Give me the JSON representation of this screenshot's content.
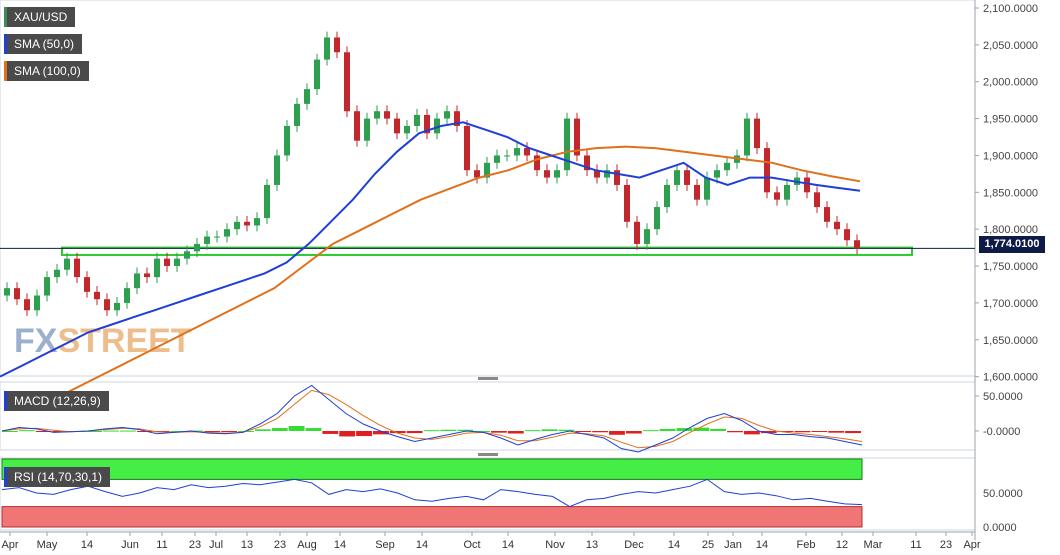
{
  "legends": {
    "symbol": {
      "label": "XAU/USD",
      "color": "#3a8a5a"
    },
    "sma50": {
      "label": "SMA (50,0)",
      "color": "#1f3fd6"
    },
    "sma100": {
      "label": "SMA (100,0)",
      "color": "#e0701a"
    },
    "macd": {
      "label": "MACD (12,26,9)",
      "color": "#1f3fd6"
    },
    "rsi": {
      "label": "RSI (14,70,30,1)",
      "color": "#1f3fd6"
    }
  },
  "watermark": {
    "part1": "FX",
    "part2": "STREET"
  },
  "last_price_label": "1,774.0100",
  "colors": {
    "up_candle": "#2e9e4f",
    "down_candle": "#c0282d",
    "sma50": "#1f3fd6",
    "sma100": "#e0701a",
    "support_zone": "#2ecc2e",
    "rsi_overbought": "#44ee44",
    "rsi_oversold": "#f07575",
    "macd_pos": "#33dd33",
    "macd_neg": "#e02020"
  },
  "chart_data": [
    {
      "type": "candlestick",
      "title": "XAU/USD",
      "ylim": [
        1590,
        2100
      ],
      "y_ticks": [
        "2,100.0000",
        "2,050.0000",
        "2,000.0000",
        "1,950.0000",
        "1,900.0000",
        "1,850.0000",
        "1,800.0000",
        "1,750.0000",
        "1,700.0000",
        "1,650.0000",
        "1,600.0000"
      ],
      "x_ticks": [
        "Apr",
        "May",
        "14",
        "Jun",
        "11",
        "23",
        "Jul",
        "13",
        "23",
        "Aug",
        "14",
        "Sep",
        "14",
        "Oct",
        "14",
        "Nov",
        "13",
        "Dec",
        "14",
        "25",
        "Jan",
        "14",
        "Feb",
        "12",
        "Mar",
        "11",
        "23",
        "Apr"
      ],
      "close_path": [
        1720,
        1705,
        1690,
        1710,
        1735,
        1745,
        1760,
        1735,
        1715,
        1705,
        1690,
        1700,
        1720,
        1740,
        1735,
        1760,
        1750,
        1760,
        1770,
        1780,
        1790,
        1790,
        1800,
        1810,
        1805,
        1815,
        1860,
        1900,
        1940,
        1970,
        1990,
        2030,
        2060,
        2040,
        1960,
        1920,
        1950,
        1960,
        1950,
        1930,
        1940,
        1955,
        1930,
        1950,
        1960,
        1940,
        1880,
        1870,
        1890,
        1900,
        1900,
        1910,
        1900,
        1880,
        1870,
        1880,
        1950,
        1900,
        1880,
        1870,
        1880,
        1860,
        1810,
        1780,
        1800,
        1830,
        1860,
        1880,
        1860,
        1840,
        1870,
        1880,
        1890,
        1900,
        1950,
        1910,
        1850,
        1840,
        1860,
        1870,
        1850,
        1830,
        1810,
        1800,
        1785,
        1774
      ],
      "sma50": [
        1600,
        1615,
        1630,
        1645,
        1660,
        1670,
        1680,
        1690,
        1700,
        1710,
        1720,
        1730,
        1740,
        1755,
        1780,
        1810,
        1840,
        1875,
        1905,
        1930,
        1940,
        1945,
        1935,
        1925,
        1910,
        1900,
        1890,
        1880,
        1875,
        1870,
        1880,
        1890,
        1870,
        1860,
        1870,
        1870,
        1865,
        1860,
        1856,
        1852
      ],
      "sma100": [
        1560,
        1580,
        1600,
        1620,
        1640,
        1660,
        1680,
        1700,
        1720,
        1750,
        1780,
        1800,
        1820,
        1840,
        1855,
        1870,
        1880,
        1895,
        1905,
        1910,
        1912,
        1910,
        1905,
        1900,
        1895,
        1890,
        1880,
        1872,
        1865
      ],
      "support_zone": [
        1765,
        1775
      ]
    },
    {
      "type": "line",
      "title": "MACD (12,26,9)",
      "y_ticks": [
        "50.0000",
        "-0.0000"
      ],
      "macd_line": [
        0,
        5,
        3,
        -2,
        -1,
        0,
        3,
        5,
        2,
        -4,
        -2,
        0,
        -3,
        -4,
        -2,
        10,
        25,
        50,
        65,
        45,
        25,
        10,
        0,
        -8,
        -15,
        -10,
        -5,
        0,
        -2,
        -10,
        -20,
        -12,
        -5,
        0,
        -5,
        -10,
        -25,
        -30,
        -20,
        -10,
        5,
        18,
        25,
        15,
        0,
        -5,
        -5,
        -8,
        -10,
        -15,
        -20
      ],
      "signal_line": [
        0,
        3,
        4,
        1,
        -1,
        0,
        2,
        4,
        3,
        -1,
        -2,
        -1,
        -2,
        -3,
        -2,
        6,
        18,
        38,
        58,
        52,
        38,
        22,
        8,
        -3,
        -10,
        -12,
        -8,
        -3,
        -2,
        -6,
        -14,
        -14,
        -9,
        -3,
        -4,
        -7,
        -16,
        -24,
        -22,
        -15,
        -2,
        10,
        20,
        18,
        8,
        0,
        -3,
        -5,
        -8,
        -11,
        -15
      ]
    },
    {
      "type": "line",
      "title": "RSI (14,70,30,1)",
      "y_ticks": [
        "50.0000",
        "0.0000"
      ],
      "overbought": 70,
      "oversold": 30,
      "rsi": [
        55,
        58,
        50,
        48,
        55,
        60,
        52,
        45,
        50,
        58,
        55,
        62,
        58,
        60,
        64,
        62,
        66,
        70,
        65,
        48,
        55,
        52,
        56,
        50,
        40,
        38,
        42,
        45,
        40,
        55,
        52,
        48,
        45,
        30,
        40,
        42,
        48,
        52,
        50,
        55,
        60,
        70,
        52,
        48,
        50,
        46,
        40,
        42,
        38,
        34,
        33
      ]
    }
  ]
}
